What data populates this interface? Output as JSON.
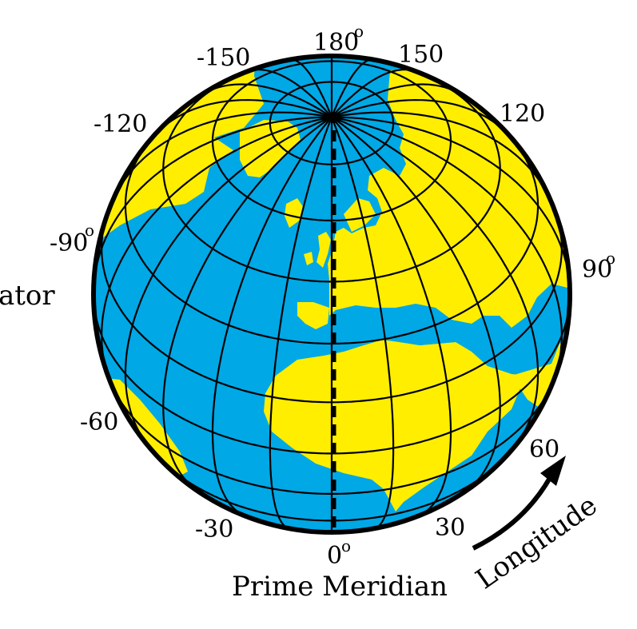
{
  "labels": {
    "lon_180": "180",
    "lon_neg150": "-150",
    "lon_150": "150",
    "lon_neg120": "-120",
    "lon_120": "120",
    "lon_neg90": "-90",
    "lon_90": "90",
    "lon_neg60": "-60",
    "lon_60": "60",
    "lon_neg30": "-30",
    "lon_30": "30",
    "lon_0": "0",
    "degree_mark": "o",
    "equator_fragment": "ator",
    "prime_meridian": "Prime Meridian",
    "longitude": "Longitude"
  },
  "colors": {
    "land": "#ffee00",
    "ocean": "#00a8e6",
    "lines": "#000000"
  }
}
